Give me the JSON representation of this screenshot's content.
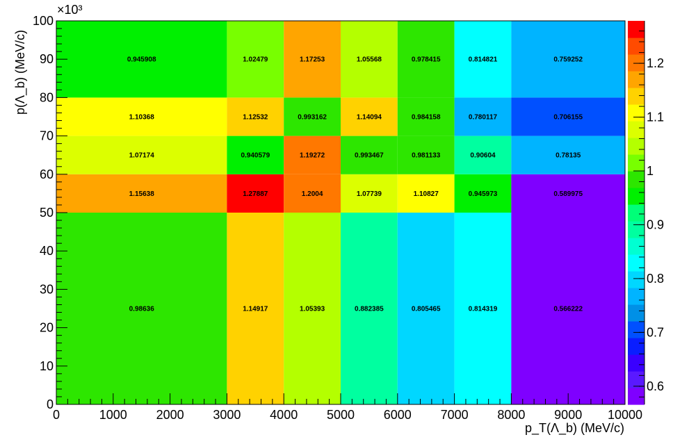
{
  "chart_data": {
    "type": "heatmap",
    "title": "",
    "xlabel": "p_T(Λ_b) (MeV/c)",
    "ylabel": "p(Λ_b) (MeV/c)",
    "y_multiplier": "×10³",
    "x_edges": [
      0,
      3000,
      4000,
      5000,
      6000,
      7000,
      8000,
      10000
    ],
    "y_edges": [
      0,
      50000,
      60000,
      70000,
      80000,
      100000
    ],
    "xlim": [
      0,
      10000
    ],
    "ylim": [
      0,
      100000
    ],
    "x_ticks": [
      0,
      1000,
      2000,
      3000,
      4000,
      5000,
      6000,
      7000,
      8000,
      9000,
      10000
    ],
    "x_tick_labels": [
      "0",
      "1000",
      "2000",
      "3000",
      "4000",
      "5000",
      "6000",
      "7000",
      "8000",
      "9000",
      "10000"
    ],
    "y_ticks": [
      0,
      10000,
      20000,
      30000,
      40000,
      50000,
      60000,
      70000,
      80000,
      90000,
      100000
    ],
    "y_tick_labels": [
      "0",
      "10",
      "20",
      "30",
      "40",
      "50",
      "60",
      "70",
      "80",
      "90",
      "100"
    ],
    "z_range": [
      0.566222,
      1.27887
    ],
    "z_ticks": [
      0.6,
      0.7,
      0.8,
      0.9,
      1.0,
      1.1,
      1.2
    ],
    "z_tick_labels": [
      "0.6",
      "0.7",
      "0.8",
      "0.9",
      "1",
      "1.1",
      "1.2"
    ],
    "values": [
      [
        "0.98636",
        "1.14917",
        "1.05393",
        "0.882385",
        "0.805465",
        "0.814319",
        "0.566222"
      ],
      [
        "1.15638",
        "1.27887",
        "1.2004",
        "1.07739",
        "1.10827",
        "0.945973",
        "0.589975"
      ],
      [
        "1.07174",
        "0.940579",
        "1.19272",
        "0.993467",
        "0.981133",
        "0.90604",
        "0.78135"
      ],
      [
        "1.10368",
        "1.12532",
        "0.993162",
        "1.14094",
        "0.984158",
        "0.780117",
        "0.706155"
      ],
      [
        "0.945908",
        "1.02479",
        "1.17253",
        "1.05568",
        "0.978415",
        "0.814821",
        "0.759252"
      ]
    ],
    "palette": [
      "#7f00ff",
      "#5a19ff",
      "#3a00ff",
      "#0a1eff",
      "#0050ff",
      "#0090e6",
      "#00b4ff",
      "#00d7ff",
      "#00ffff",
      "#00ffd2",
      "#00ffa0",
      "#00ff78",
      "#00f000",
      "#2de600",
      "#78ff00",
      "#b4ff00",
      "#dcff00",
      "#ffff00",
      "#ffd200",
      "#ffa500",
      "#ff7800",
      "#ff4b00",
      "#ff0000"
    ],
    "legend": "color-scale-right",
    "grid": false
  }
}
